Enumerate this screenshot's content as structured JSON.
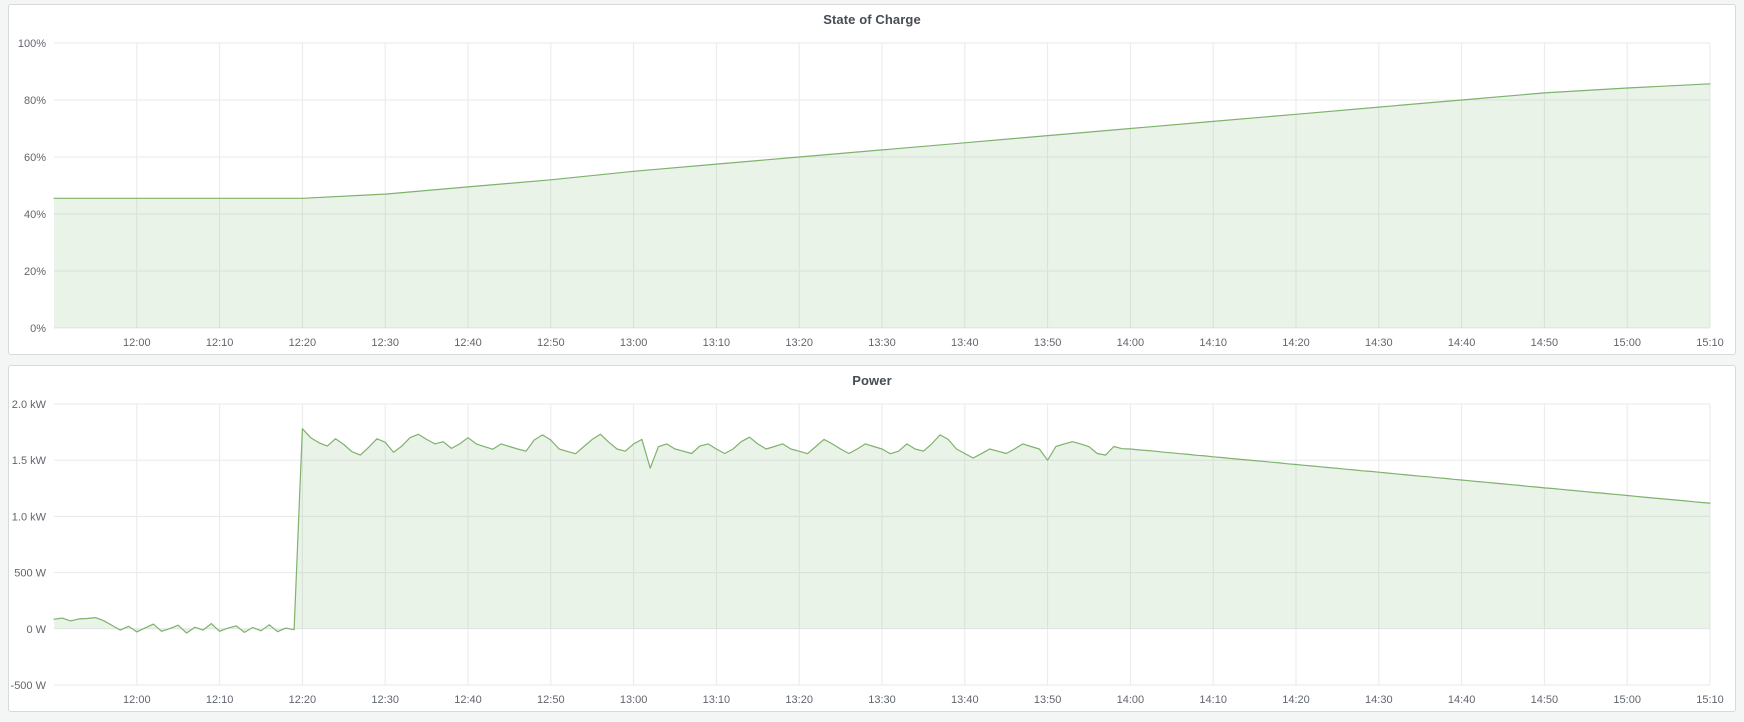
{
  "theme": {
    "page_bg": "#f4f5f5",
    "panel_bg": "#ffffff",
    "panel_border": "#d8d9da",
    "title_color": "#464c54",
    "axis_text_color": "#61666d",
    "grid_color": "#e9eaeb",
    "line_color": "#7eb26d",
    "fill_color": "rgba(126,178,109,0.16)"
  },
  "chart_data": [
    {
      "type": "area",
      "title": "State of Charge",
      "legend": "off",
      "grid": "on",
      "x_min": 0,
      "x_max": 200,
      "ylim": [
        0,
        100
      ],
      "fill_to_value": 0,
      "y_ticks": [
        {
          "value": 0,
          "label": "0%"
        },
        {
          "value": 20,
          "label": "20%"
        },
        {
          "value": 40,
          "label": "40%"
        },
        {
          "value": 60,
          "label": "60%"
        },
        {
          "value": 80,
          "label": "80%"
        },
        {
          "value": 100,
          "label": "100%"
        }
      ],
      "x_ticks": [
        {
          "minute": 10,
          "label": "12:00"
        },
        {
          "minute": 20,
          "label": "12:10"
        },
        {
          "minute": 30,
          "label": "12:20"
        },
        {
          "minute": 40,
          "label": "12:30"
        },
        {
          "minute": 50,
          "label": "12:40"
        },
        {
          "minute": 60,
          "label": "12:50"
        },
        {
          "minute": 70,
          "label": "13:00"
        },
        {
          "minute": 80,
          "label": "13:10"
        },
        {
          "minute": 90,
          "label": "13:20"
        },
        {
          "minute": 100,
          "label": "13:30"
        },
        {
          "minute": 110,
          "label": "13:40"
        },
        {
          "minute": 120,
          "label": "13:50"
        },
        {
          "minute": 130,
          "label": "14:00"
        },
        {
          "minute": 140,
          "label": "14:10"
        },
        {
          "minute": 150,
          "label": "14:20"
        },
        {
          "minute": 160,
          "label": "14:30"
        },
        {
          "minute": 170,
          "label": "14:40"
        },
        {
          "minute": 180,
          "label": "14:50"
        },
        {
          "minute": 190,
          "label": "15:00"
        },
        {
          "minute": 200,
          "label": "15:10"
        }
      ],
      "series": [
        {
          "name": "State of Charge",
          "unit": "%",
          "x": [
            0,
            30,
            40,
            50,
            60,
            70,
            80,
            90,
            100,
            110,
            120,
            130,
            140,
            150,
            160,
            170,
            180,
            190,
            200
          ],
          "values": [
            45.5,
            45.5,
            47,
            49.5,
            52,
            55,
            57.5,
            60,
            62.5,
            65,
            67.5,
            70,
            72.5,
            75,
            77.5,
            80,
            82.5,
            84.2,
            85.7
          ]
        }
      ]
    },
    {
      "type": "area",
      "title": "Power",
      "legend": "off",
      "grid": "on",
      "x_min": 0,
      "x_max": 200,
      "ylim": [
        -500,
        2000
      ],
      "fill_to_value": 0,
      "y_ticks": [
        {
          "value": -500,
          "label": "-500 W"
        },
        {
          "value": 0,
          "label": "0 W"
        },
        {
          "value": 500,
          "label": "500 W"
        },
        {
          "value": 1000,
          "label": "1.0 kW"
        },
        {
          "value": 1500,
          "label": "1.5 kW"
        },
        {
          "value": 2000,
          "label": "2.0 kW"
        }
      ],
      "x_ticks": [
        {
          "minute": 10,
          "label": "12:00"
        },
        {
          "minute": 20,
          "label": "12:10"
        },
        {
          "minute": 30,
          "label": "12:20"
        },
        {
          "minute": 40,
          "label": "12:30"
        },
        {
          "minute": 50,
          "label": "12:40"
        },
        {
          "minute": 60,
          "label": "12:50"
        },
        {
          "minute": 70,
          "label": "13:00"
        },
        {
          "minute": 80,
          "label": "13:10"
        },
        {
          "minute": 90,
          "label": "13:20"
        },
        {
          "minute": 100,
          "label": "13:30"
        },
        {
          "minute": 110,
          "label": "13:40"
        },
        {
          "minute": 120,
          "label": "13:50"
        },
        {
          "minute": 130,
          "label": "14:00"
        },
        {
          "minute": 140,
          "label": "14:10"
        },
        {
          "minute": 150,
          "label": "14:20"
        },
        {
          "minute": 160,
          "label": "14:30"
        },
        {
          "minute": 170,
          "label": "14:40"
        },
        {
          "minute": 180,
          "label": "14:50"
        },
        {
          "minute": 190,
          "label": "15:00"
        },
        {
          "minute": 200,
          "label": "15:10"
        }
      ],
      "series": [
        {
          "name": "Power",
          "unit": "W",
          "x_start": 0,
          "x_step": 1,
          "values": [
            85,
            95,
            70,
            88,
            92,
            100,
            72,
            30,
            -12,
            22,
            -28,
            8,
            42,
            -22,
            2,
            32,
            -38,
            14,
            -12,
            46,
            -22,
            6,
            26,
            -32,
            12,
            -18,
            36,
            -26,
            6,
            -8,
            1780,
            1700,
            1655,
            1625,
            1690,
            1640,
            1575,
            1545,
            1615,
            1690,
            1660,
            1570,
            1625,
            1700,
            1730,
            1685,
            1645,
            1665,
            1605,
            1645,
            1700,
            1645,
            1620,
            1598,
            1645,
            1622,
            1600,
            1580,
            1680,
            1725,
            1680,
            1600,
            1578,
            1558,
            1622,
            1685,
            1730,
            1660,
            1600,
            1580,
            1645,
            1685,
            1430,
            1620,
            1645,
            1600,
            1580,
            1560,
            1625,
            1645,
            1600,
            1560,
            1600,
            1665,
            1705,
            1645,
            1600,
            1622,
            1645,
            1600,
            1580,
            1558,
            1622,
            1685,
            1645,
            1600,
            1560,
            1600,
            1645,
            1622,
            1600,
            1558,
            1580,
            1645,
            1600,
            1580,
            1645,
            1725,
            1685,
            1600,
            1560,
            1520,
            1558,
            1600,
            1580,
            1560,
            1600,
            1645,
            1622,
            1600,
            1500,
            1622,
            1645,
            1665,
            1645,
            1620,
            1560,
            1545,
            1622,
            1602,
            1600,
            1592,
            1586,
            1580,
            1571,
            1566,
            1558,
            1552,
            1544,
            1538,
            1530,
            1524,
            1516,
            1510,
            1503,
            1496,
            1490,
            1482,
            1476,
            1468,
            1462,
            1455,
            1448,
            1441,
            1434,
            1428,
            1420,
            1414,
            1406,
            1400,
            1393,
            1386,
            1379,
            1372,
            1365,
            1358,
            1352,
            1344,
            1338,
            1330,
            1324,
            1317,
            1310,
            1303,
            1296,
            1289,
            1282,
            1276,
            1268,
            1262,
            1254,
            1248,
            1241,
            1234,
            1227,
            1220,
            1213,
            1207,
            1199,
            1193,
            1186,
            1179,
            1172,
            1165,
            1158,
            1151,
            1145,
            1138,
            1131,
            1124,
            1118
          ]
        }
      ]
    }
  ]
}
